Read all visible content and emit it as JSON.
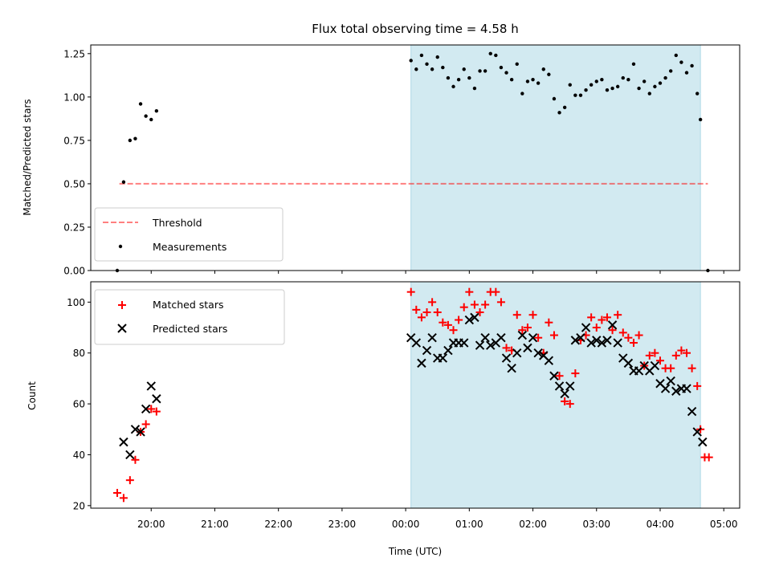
{
  "title": "Flux total observing time = 4.58 h",
  "colors": {
    "shade": "#add8e6",
    "threshold": "#ff0000",
    "measurement": "#000000",
    "matched": "#ff0000",
    "predicted": "#000000"
  },
  "chart_data": [
    {
      "type": "scatter",
      "ylabel": "Matched/Predicted stars",
      "ylim": [
        0,
        1.3
      ],
      "yticks": [
        0,
        0.25,
        0.5,
        0.75,
        1.0,
        1.25
      ],
      "ytick_labels": [
        "0.00",
        "0.25",
        "0.50",
        "0.75",
        "1.00",
        "1.25"
      ],
      "xlim_hours": [
        19.05,
        29.25
      ],
      "shaded_span": [
        "00:05",
        "04:38"
      ],
      "grid": false,
      "legend": {
        "placement": "lower-left",
        "threshold_label": "Threshold",
        "measurements_label": "Measurements"
      },
      "threshold": {
        "value": 0.5,
        "x_start": "19:30",
        "x_end": "04:45"
      },
      "measurements": [
        [
          "19:28",
          0.0
        ],
        [
          "19:34",
          0.51
        ],
        [
          "19:40",
          0.75
        ],
        [
          "19:45",
          0.76
        ],
        [
          "19:50",
          0.96
        ],
        [
          "19:55",
          0.89
        ],
        [
          "20:00",
          0.87
        ],
        [
          "20:05",
          0.92
        ],
        [
          "00:05",
          1.21
        ],
        [
          "00:10",
          1.16
        ],
        [
          "00:15",
          1.24
        ],
        [
          "00:20",
          1.19
        ],
        [
          "00:25",
          1.16
        ],
        [
          "00:30",
          1.23
        ],
        [
          "00:35",
          1.17
        ],
        [
          "00:40",
          1.11
        ],
        [
          "00:45",
          1.06
        ],
        [
          "00:50",
          1.1
        ],
        [
          "00:55",
          1.16
        ],
        [
          "01:00",
          1.11
        ],
        [
          "01:05",
          1.05
        ],
        [
          "01:10",
          1.15
        ],
        [
          "01:15",
          1.15
        ],
        [
          "01:20",
          1.25
        ],
        [
          "01:25",
          1.24
        ],
        [
          "01:30",
          1.17
        ],
        [
          "01:35",
          1.14
        ],
        [
          "01:40",
          1.1
        ],
        [
          "01:45",
          1.19
        ],
        [
          "01:50",
          1.02
        ],
        [
          "01:55",
          1.09
        ],
        [
          "02:00",
          1.1
        ],
        [
          "02:05",
          1.08
        ],
        [
          "02:10",
          1.16
        ],
        [
          "02:15",
          1.13
        ],
        [
          "02:20",
          0.99
        ],
        [
          "02:25",
          0.91
        ],
        [
          "02:30",
          0.94
        ],
        [
          "02:35",
          1.07
        ],
        [
          "02:40",
          1.01
        ],
        [
          "02:45",
          1.01
        ],
        [
          "02:50",
          1.04
        ],
        [
          "02:55",
          1.07
        ],
        [
          "03:00",
          1.09
        ],
        [
          "03:05",
          1.1
        ],
        [
          "03:10",
          1.04
        ],
        [
          "03:15",
          1.05
        ],
        [
          "03:20",
          1.06
        ],
        [
          "03:25",
          1.11
        ],
        [
          "03:30",
          1.1
        ],
        [
          "03:35",
          1.19
        ],
        [
          "03:40",
          1.05
        ],
        [
          "03:45",
          1.09
        ],
        [
          "03:50",
          1.02
        ],
        [
          "03:55",
          1.06
        ],
        [
          "04:00",
          1.08
        ],
        [
          "04:05",
          1.11
        ],
        [
          "04:10",
          1.15
        ],
        [
          "04:15",
          1.24
        ],
        [
          "04:20",
          1.2
        ],
        [
          "04:25",
          1.14
        ],
        [
          "04:30",
          1.18
        ],
        [
          "04:35",
          1.02
        ],
        [
          "04:38",
          0.87
        ],
        [
          "04:45",
          0.0
        ]
      ]
    },
    {
      "type": "scatter",
      "xlabel": "Time (UTC)",
      "ylabel": "Count",
      "ylim": [
        19,
        108
      ],
      "yticks": [
        20,
        40,
        60,
        80,
        100
      ],
      "ytick_labels": [
        "20",
        "40",
        "60",
        "80",
        "100"
      ],
      "xlim_hours": [
        19.05,
        29.25
      ],
      "xticks": [
        "20:00",
        "21:00",
        "22:00",
        "23:00",
        "00:00",
        "01:00",
        "02:00",
        "03:00",
        "04:00",
        "05:00"
      ],
      "shaded_span": [
        "00:05",
        "04:38"
      ],
      "grid": false,
      "legend": {
        "placement": "top-left"
      },
      "series": [
        {
          "name": "Matched stars",
          "marker": "plus",
          "points": [
            [
              "19:28",
              25
            ],
            [
              "19:34",
              23
            ],
            [
              "19:40",
              30
            ],
            [
              "19:45",
              38
            ],
            [
              "19:50",
              49
            ],
            [
              "19:55",
              52
            ],
            [
              "20:00",
              58
            ],
            [
              "20:05",
              57
            ],
            [
              "00:05",
              104
            ],
            [
              "00:10",
              97
            ],
            [
              "00:15",
              94
            ],
            [
              "00:20",
              96
            ],
            [
              "00:25",
              100
            ],
            [
              "00:30",
              96
            ],
            [
              "00:35",
              92
            ],
            [
              "00:40",
              91
            ],
            [
              "00:45",
              89
            ],
            [
              "00:50",
              93
            ],
            [
              "00:55",
              98
            ],
            [
              "01:00",
              104
            ],
            [
              "01:05",
              99
            ],
            [
              "01:10",
              96
            ],
            [
              "01:15",
              99
            ],
            [
              "01:20",
              104
            ],
            [
              "01:25",
              104
            ],
            [
              "01:30",
              100
            ],
            [
              "01:35",
              82
            ],
            [
              "01:40",
              81
            ],
            [
              "01:45",
              95
            ],
            [
              "01:50",
              89
            ],
            [
              "01:55",
              90
            ],
            [
              "02:00",
              95
            ],
            [
              "02:05",
              86
            ],
            [
              "02:10",
              80
            ],
            [
              "02:15",
              92
            ],
            [
              "02:20",
              87
            ],
            [
              "02:25",
              71
            ],
            [
              "02:30",
              61
            ],
            [
              "02:35",
              60
            ],
            [
              "02:40",
              72
            ],
            [
              "02:45",
              85
            ],
            [
              "02:50",
              87
            ],
            [
              "02:55",
              94
            ],
            [
              "03:00",
              90
            ],
            [
              "03:05",
              93
            ],
            [
              "03:10",
              94
            ],
            [
              "03:15",
              89
            ],
            [
              "03:20",
              95
            ],
            [
              "03:25",
              88
            ],
            [
              "03:30",
              86
            ],
            [
              "03:35",
              84
            ],
            [
              "03:40",
              87
            ],
            [
              "03:45",
              75
            ],
            [
              "03:50",
              79
            ],
            [
              "03:55",
              80
            ],
            [
              "04:00",
              77
            ],
            [
              "04:05",
              74
            ],
            [
              "04:10",
              74
            ],
            [
              "04:15",
              79
            ],
            [
              "04:20",
              81
            ],
            [
              "04:25",
              80
            ],
            [
              "04:30",
              74
            ],
            [
              "04:35",
              67
            ],
            [
              "04:38",
              50
            ],
            [
              "04:42",
              39
            ],
            [
              "04:46",
              39
            ]
          ]
        },
        {
          "name": "Predicted stars",
          "marker": "x",
          "points": [
            [
              "19:34",
              45
            ],
            [
              "19:40",
              40
            ],
            [
              "19:45",
              50
            ],
            [
              "19:50",
              49
            ],
            [
              "19:55",
              58
            ],
            [
              "20:00",
              67
            ],
            [
              "20:05",
              62
            ],
            [
              "00:05",
              86
            ],
            [
              "00:10",
              84
            ],
            [
              "00:15",
              76
            ],
            [
              "00:20",
              81
            ],
            [
              "00:25",
              86
            ],
            [
              "00:30",
              78
            ],
            [
              "00:35",
              78
            ],
            [
              "00:40",
              81
            ],
            [
              "00:45",
              84
            ],
            [
              "00:50",
              84
            ],
            [
              "00:55",
              84
            ],
            [
              "01:00",
              93
            ],
            [
              "01:05",
              94
            ],
            [
              "01:10",
              83
            ],
            [
              "01:15",
              86
            ],
            [
              "01:20",
              83
            ],
            [
              "01:25",
              84
            ],
            [
              "01:30",
              86
            ],
            [
              "01:35",
              78
            ],
            [
              "01:40",
              74
            ],
            [
              "01:45",
              80
            ],
            [
              "01:50",
              87
            ],
            [
              "01:55",
              82
            ],
            [
              "02:00",
              86
            ],
            [
              "02:05",
              80
            ],
            [
              "02:10",
              79
            ],
            [
              "02:15",
              77
            ],
            [
              "02:20",
              71
            ],
            [
              "02:25",
              67
            ],
            [
              "02:30",
              64
            ],
            [
              "02:35",
              67
            ],
            [
              "02:40",
              85
            ],
            [
              "02:45",
              86
            ],
            [
              "02:50",
              90
            ],
            [
              "02:55",
              84
            ],
            [
              "03:00",
              85
            ],
            [
              "03:05",
              84
            ],
            [
              "03:10",
              85
            ],
            [
              "03:15",
              91
            ],
            [
              "03:20",
              84
            ],
            [
              "03:25",
              78
            ],
            [
              "03:30",
              76
            ],
            [
              "03:35",
              73
            ],
            [
              "03:40",
              73
            ],
            [
              "03:45",
              75
            ],
            [
              "03:50",
              73
            ],
            [
              "03:55",
              75
            ],
            [
              "04:00",
              68
            ],
            [
              "04:05",
              66
            ],
            [
              "04:10",
              69
            ],
            [
              "04:15",
              65
            ],
            [
              "04:20",
              66
            ],
            [
              "04:25",
              66
            ],
            [
              "04:30",
              57
            ],
            [
              "04:35",
              49
            ],
            [
              "04:40",
              45
            ]
          ]
        }
      ]
    }
  ]
}
